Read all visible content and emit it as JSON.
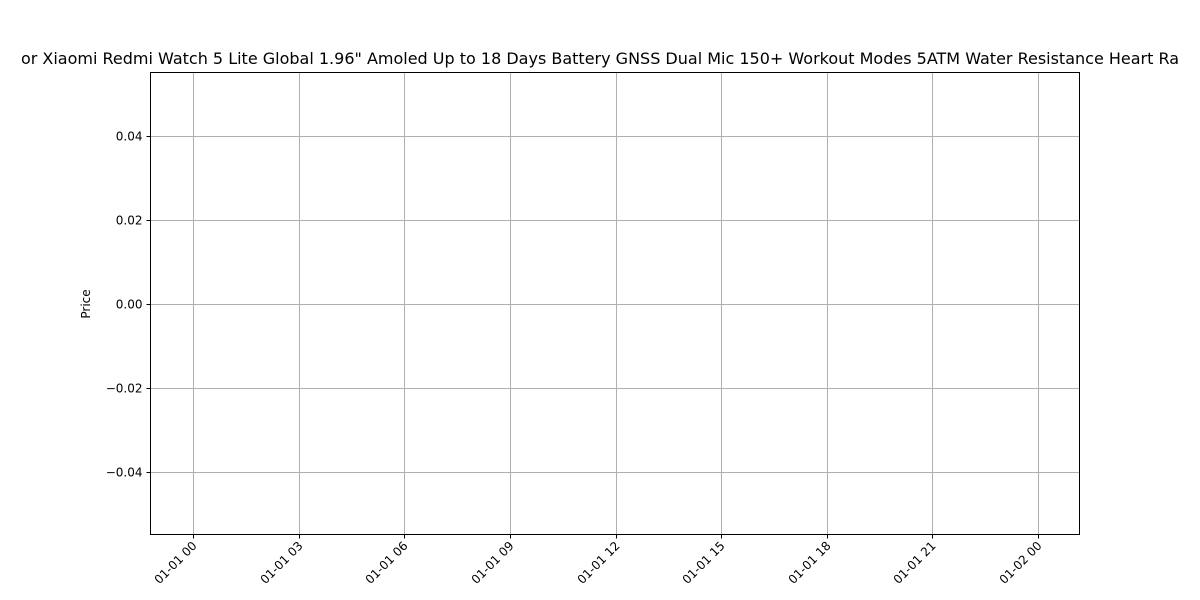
{
  "chart_data": {
    "type": "line",
    "title": "or Xiaomi Redmi Watch 5 Lite Global 1.96\" Amoled Up to 18 Days Battery GNSS Dual Mic 150+ Workout Modes 5ATM Water Resistance Heart Ra",
    "xlabel": "",
    "ylabel": "Price",
    "x_ticks": [
      "01-01 00",
      "01-01 03",
      "01-01 06",
      "01-01 09",
      "01-01 12",
      "01-01 15",
      "01-01 18",
      "01-01 21",
      "01-02 00"
    ],
    "y_ticks": [
      "0.04",
      "0.02",
      "0.00",
      "−0.02",
      "−0.04"
    ],
    "y_tick_values": [
      0.04,
      0.02,
      0.0,
      -0.02,
      -0.04
    ],
    "ylim": [
      -0.055,
      0.055
    ],
    "grid": true,
    "series": []
  }
}
